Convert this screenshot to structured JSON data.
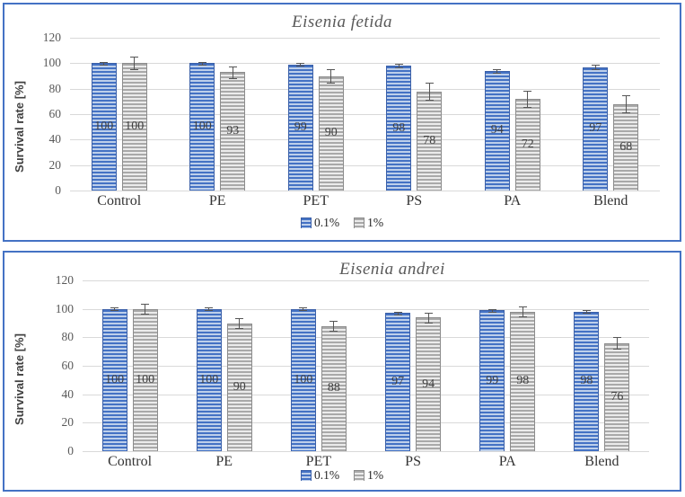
{
  "colors": {
    "chart_border": "#4472C4",
    "blue_dark": "#4472C4",
    "blue_light": "#BDCFEA",
    "blue_border": "#3B60A8",
    "gray_dark": "#A9A9A9",
    "gray_light": "#EBEBEB",
    "gray_border": "#8C8C8C",
    "gridline": "#D9D9D9",
    "error_bar": "#555555",
    "tick_text": "#595959",
    "title_text": "#595959"
  },
  "chart_data": [
    {
      "type": "bar",
      "title": "Eisenia fetida",
      "ylabel": "Survival rate [%]",
      "ylim": [
        0,
        120
      ],
      "yticks": [
        0,
        20,
        40,
        60,
        80,
        100,
        120
      ],
      "grid": true,
      "legend_position": "bottom",
      "categories": [
        "Control",
        "PE",
        "PET",
        "PS",
        "PA",
        "Blend"
      ],
      "series": [
        {
          "name": "0.1%",
          "values": [
            100,
            100,
            99,
            98,
            94,
            97
          ],
          "errors": [
            1,
            1,
            1,
            1.5,
            1.5,
            1.5
          ]
        },
        {
          "name": "1%",
          "values": [
            100,
            93,
            90,
            78,
            72,
            68
          ],
          "errors": [
            5,
            4.5,
            5,
            6.5,
            6.5,
            6.5
          ]
        }
      ]
    },
    {
      "type": "bar",
      "title": "Eisenia andrei",
      "ylabel": "Survival rate [%]",
      "ylim": [
        0,
        120
      ],
      "yticks": [
        0,
        20,
        40,
        60,
        80,
        100,
        120
      ],
      "grid": true,
      "legend_position": "bottom",
      "categories": [
        "Control",
        "PE",
        "PET",
        "PS",
        "PA",
        "Blend"
      ],
      "series": [
        {
          "name": "0.1%",
          "values": [
            100,
            100,
            100,
            97,
            99,
            98
          ],
          "errors": [
            1,
            1,
            1,
            1,
            1,
            1
          ]
        },
        {
          "name": "1%",
          "values": [
            100,
            90,
            88,
            94,
            98,
            76
          ],
          "errors": [
            3.5,
            3.5,
            3.5,
            3.5,
            3.5,
            4
          ]
        }
      ]
    }
  ]
}
